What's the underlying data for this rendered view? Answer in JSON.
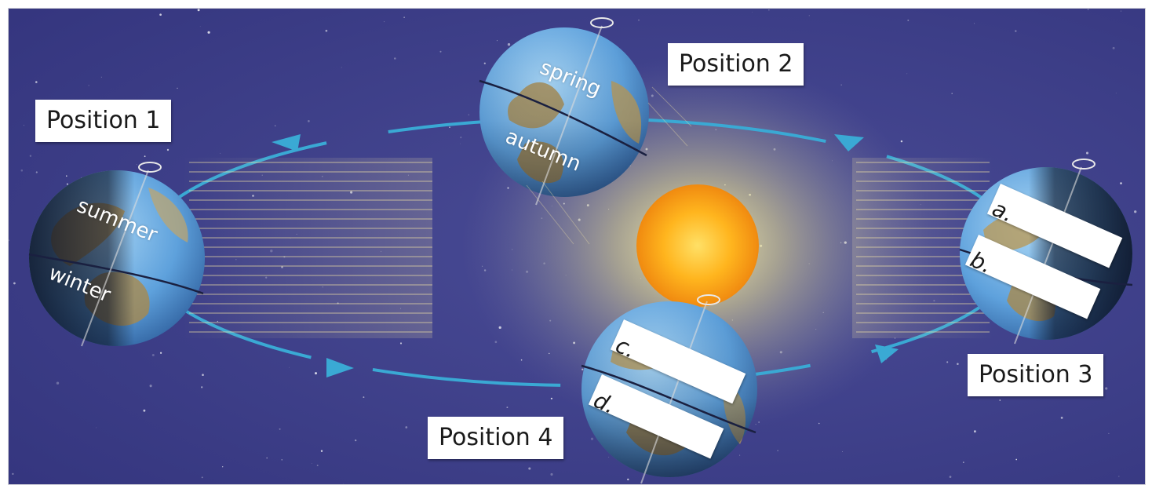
{
  "positions": {
    "p1": "Position 1",
    "p2": "Position 2",
    "p3": "Position 3",
    "p4": "Position 4"
  },
  "seasons": {
    "spring": "spring",
    "autumn": "autumn",
    "summer": "summer",
    "winter": "winter"
  },
  "blanks": {
    "a": "a.",
    "b": "b.",
    "c": "c.",
    "d": "d."
  },
  "colors": {
    "space": "#3c3f8f",
    "orbit": "#3aa9d4",
    "ocean": "#5a9fd6",
    "land": "#b89a5a",
    "sun": "#ffb01a"
  }
}
